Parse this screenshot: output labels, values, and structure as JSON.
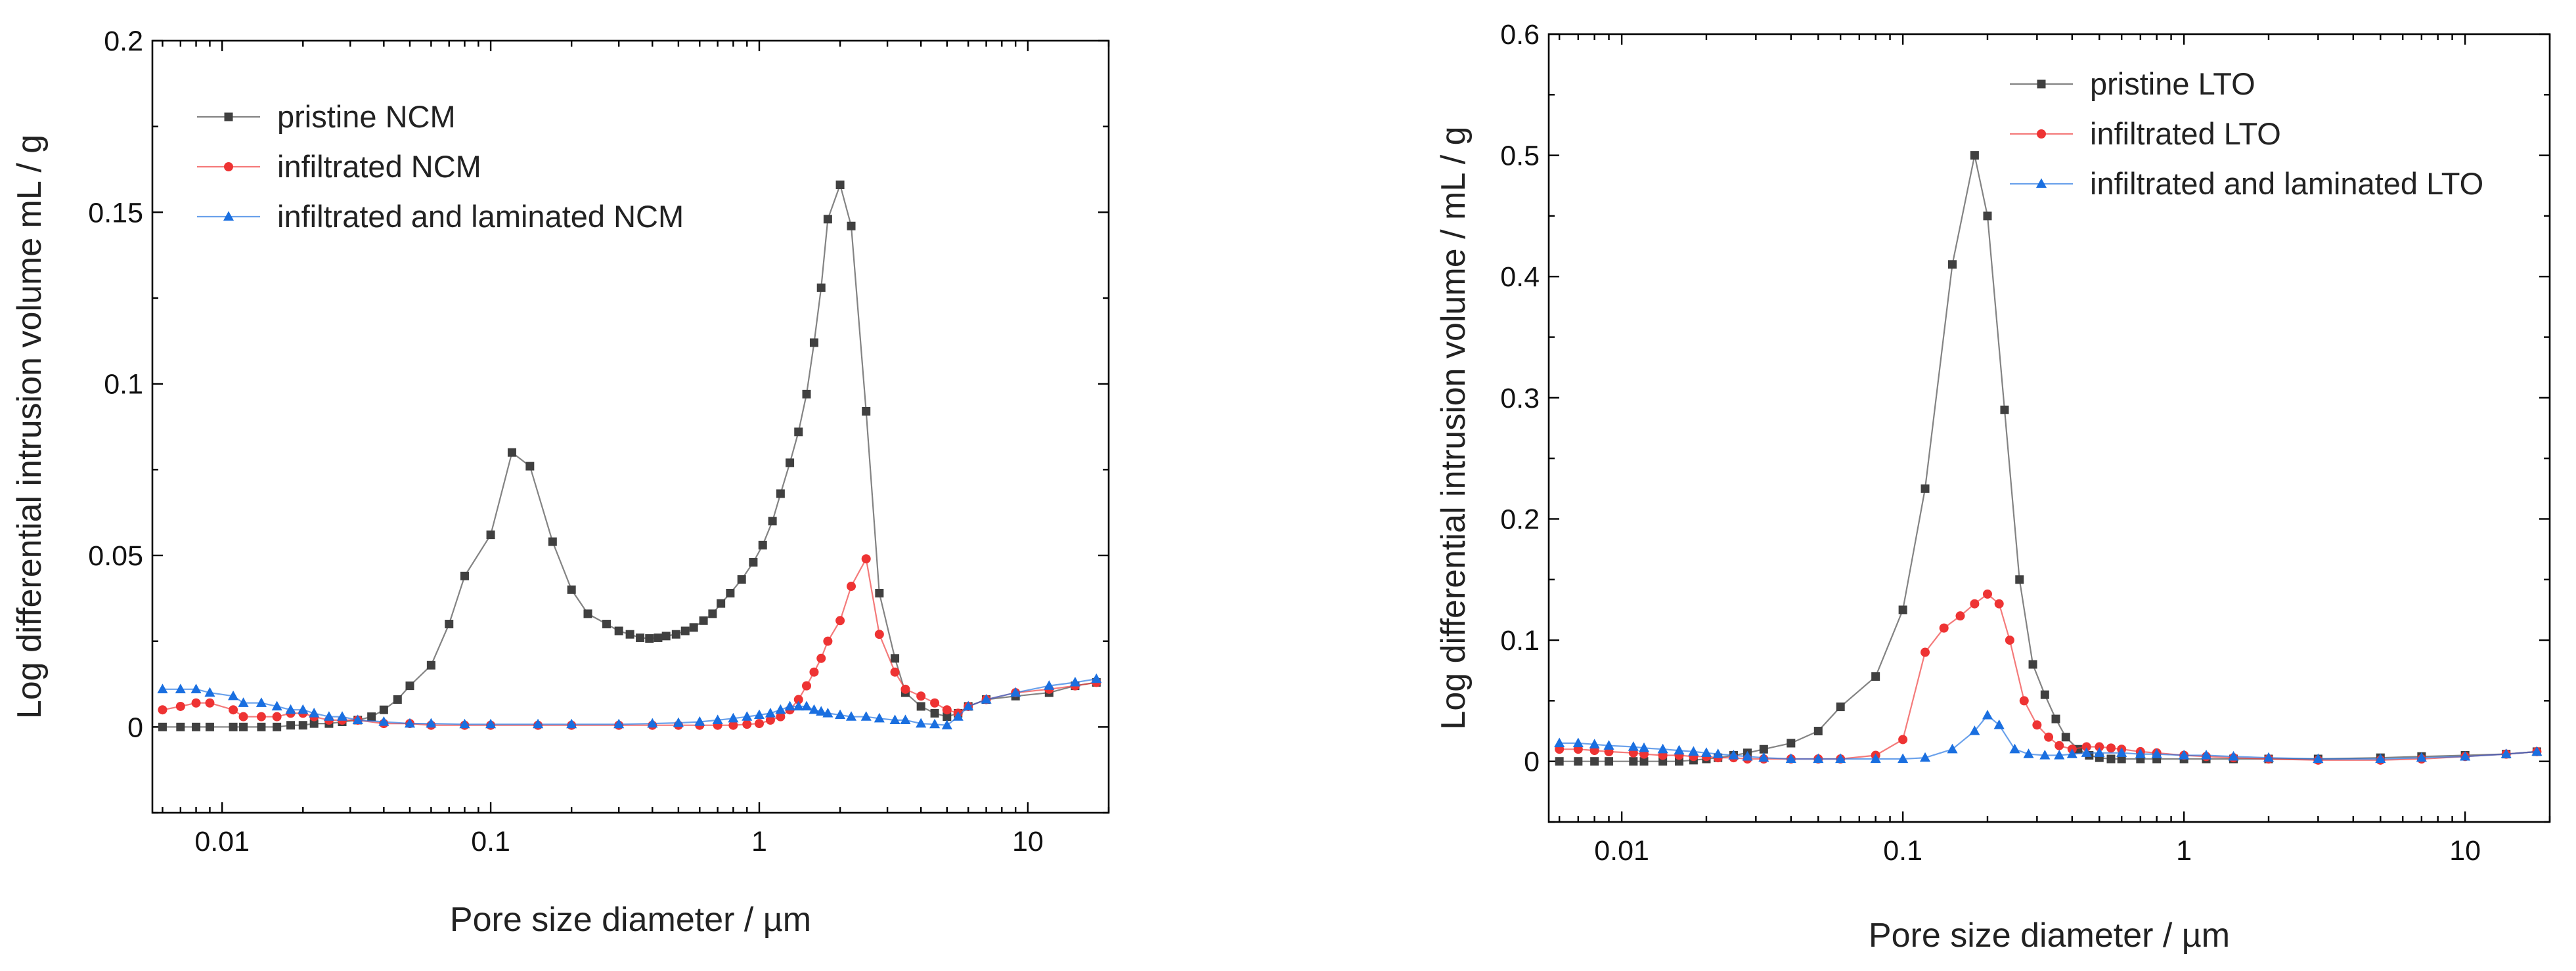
{
  "chart_data": [
    {
      "type": "scatter",
      "title": "",
      "xlabel": "Pore size diameter / µm",
      "ylabel": "Log differential intrusion volume mL / g",
      "xscale": "log",
      "xlim": [
        0.0055,
        20
      ],
      "ylim": [
        -0.025,
        0.2
      ],
      "xticks": [
        0.01,
        0.1,
        1,
        10
      ],
      "xtick_labels": [
        "0.01",
        "0.1",
        "1",
        "10"
      ],
      "yticks": [
        0,
        0.05,
        0.1,
        0.15,
        0.2
      ],
      "ytick_labels": [
        "0",
        "0.05",
        "0.1",
        "0.15",
        "0.2"
      ],
      "legend_position": "top-left",
      "series": [
        {
          "name": "pristine NCM",
          "color": "#404040",
          "marker": "square",
          "x": [
            0.006,
            0.007,
            0.008,
            0.009,
            0.011,
            0.012,
            0.014,
            0.016,
            0.018,
            0.02,
            0.022,
            0.025,
            0.028,
            0.032,
            0.036,
            0.04,
            0.045,
            0.05,
            0.06,
            0.07,
            0.08,
            0.1,
            0.12,
            0.14,
            0.17,
            0.2,
            0.23,
            0.27,
            0.3,
            0.33,
            0.36,
            0.39,
            0.42,
            0.45,
            0.49,
            0.53,
            0.57,
            0.62,
            0.67,
            0.72,
            0.78,
            0.86,
            0.95,
            1.03,
            1.12,
            1.2,
            1.3,
            1.4,
            1.5,
            1.6,
            1.7,
            1.8,
            2.0,
            2.2,
            2.5,
            2.8,
            3.2,
            3.5,
            4.0,
            4.5,
            5.0,
            5.5,
            6.0,
            7.0,
            9.0,
            12.0,
            15.0,
            18.0
          ],
          "y": [
            0,
            0,
            0,
            0,
            0,
            0,
            0,
            0,
            0.0005,
            0.0005,
            0.001,
            0.001,
            0.0015,
            0.002,
            0.003,
            0.005,
            0.008,
            0.012,
            0.018,
            0.03,
            0.044,
            0.056,
            0.08,
            0.076,
            0.054,
            0.04,
            0.033,
            0.03,
            0.028,
            0.027,
            0.026,
            0.0258,
            0.026,
            0.0265,
            0.027,
            0.028,
            0.029,
            0.031,
            0.033,
            0.036,
            0.039,
            0.043,
            0.048,
            0.053,
            0.06,
            0.068,
            0.077,
            0.086,
            0.097,
            0.112,
            0.128,
            0.148,
            0.158,
            0.146,
            0.092,
            0.039,
            0.02,
            0.01,
            0.006,
            0.004,
            0.003,
            0.004,
            0.006,
            0.008,
            0.009,
            0.01,
            0.012,
            0.013
          ]
        },
        {
          "name": "infiltrated NCM",
          "color": "#ee3333",
          "marker": "circle",
          "x": [
            0.006,
            0.007,
            0.008,
            0.009,
            0.011,
            0.012,
            0.014,
            0.016,
            0.018,
            0.02,
            0.022,
            0.025,
            0.028,
            0.032,
            0.04,
            0.05,
            0.06,
            0.08,
            0.1,
            0.15,
            0.2,
            0.3,
            0.4,
            0.5,
            0.6,
            0.7,
            0.8,
            0.9,
            1.0,
            1.1,
            1.2,
            1.3,
            1.4,
            1.5,
            1.6,
            1.7,
            1.8,
            2.0,
            2.2,
            2.5,
            2.8,
            3.2,
            3.5,
            4.0,
            4.5,
            5.0,
            5.5,
            6.0,
            7.0,
            9.0,
            12.0,
            15.0,
            18.0
          ],
          "y": [
            0.005,
            0.006,
            0.007,
            0.007,
            0.005,
            0.003,
            0.003,
            0.003,
            0.004,
            0.004,
            0.003,
            0.002,
            0.002,
            0.002,
            0.001,
            0.001,
            0.0005,
            0.0005,
            0.0005,
            0.0005,
            0.0005,
            0.0005,
            0.0005,
            0.0005,
            0.0005,
            0.0005,
            0.0005,
            0.0008,
            0.001,
            0.002,
            0.003,
            0.005,
            0.008,
            0.012,
            0.016,
            0.02,
            0.025,
            0.031,
            0.041,
            0.049,
            0.027,
            0.016,
            0.011,
            0.009,
            0.007,
            0.005,
            0.004,
            0.006,
            0.008,
            0.01,
            0.011,
            0.012,
            0.013
          ]
        },
        {
          "name": "infiltrated and laminated NCM",
          "color": "#1a6fe0",
          "marker": "triangle",
          "x": [
            0.006,
            0.007,
            0.008,
            0.009,
            0.011,
            0.012,
            0.014,
            0.016,
            0.018,
            0.02,
            0.022,
            0.025,
            0.028,
            0.032,
            0.04,
            0.05,
            0.06,
            0.08,
            0.1,
            0.15,
            0.2,
            0.3,
            0.4,
            0.5,
            0.6,
            0.7,
            0.8,
            0.9,
            1.0,
            1.1,
            1.2,
            1.3,
            1.4,
            1.5,
            1.6,
            1.7,
            1.8,
            2.0,
            2.2,
            2.5,
            2.8,
            3.2,
            3.5,
            4.0,
            4.5,
            5.0,
            5.5,
            6.0,
            7.0,
            9.0,
            12.0,
            15.0,
            18.0
          ],
          "y": [
            0.011,
            0.011,
            0.011,
            0.01,
            0.009,
            0.007,
            0.007,
            0.006,
            0.005,
            0.005,
            0.004,
            0.003,
            0.003,
            0.002,
            0.0015,
            0.001,
            0.001,
            0.0008,
            0.0008,
            0.0008,
            0.0008,
            0.0008,
            0.001,
            0.0012,
            0.0015,
            0.002,
            0.0025,
            0.003,
            0.0035,
            0.004,
            0.005,
            0.006,
            0.006,
            0.006,
            0.005,
            0.0045,
            0.004,
            0.0035,
            0.003,
            0.003,
            0.0025,
            0.002,
            0.002,
            0.001,
            0.0008,
            0.0005,
            0.003,
            0.006,
            0.008,
            0.01,
            0.012,
            0.013,
            0.014
          ]
        }
      ]
    },
    {
      "type": "scatter",
      "title": "",
      "xlabel": "Pore size diameter / µm",
      "ylabel": "Log differential intrusion volume / mL / g",
      "xscale": "log",
      "xlim": [
        0.0055,
        20
      ],
      "ylim": [
        -0.05,
        0.6
      ],
      "xticks": [
        0.01,
        0.1,
        1,
        10
      ],
      "xtick_labels": [
        "0.01",
        "0.1",
        "1",
        "10"
      ],
      "yticks": [
        0,
        0.1,
        0.2,
        0.3,
        0.4,
        0.5,
        0.6
      ],
      "ytick_labels": [
        "0",
        "0.1",
        "0.2",
        "0.3",
        "0.4",
        "0.5",
        "0.6"
      ],
      "legend_position": "top-right",
      "series": [
        {
          "name": "pristine LTO",
          "color": "#404040",
          "marker": "square",
          "x": [
            0.006,
            0.007,
            0.008,
            0.009,
            0.011,
            0.012,
            0.014,
            0.016,
            0.018,
            0.02,
            0.022,
            0.025,
            0.028,
            0.032,
            0.04,
            0.05,
            0.06,
            0.08,
            0.1,
            0.12,
            0.15,
            0.18,
            0.2,
            0.23,
            0.26,
            0.29,
            0.32,
            0.35,
            0.38,
            0.42,
            0.46,
            0.5,
            0.55,
            0.6,
            0.7,
            0.8,
            1.0,
            1.2,
            1.5,
            2.0,
            3.0,
            5.0,
            7.0,
            10.0,
            14.0,
            18.0
          ],
          "y": [
            0,
            0,
            0,
            0,
            0,
            0,
            0,
            0,
            0.001,
            0.002,
            0.003,
            0.005,
            0.007,
            0.01,
            0.015,
            0.025,
            0.045,
            0.07,
            0.125,
            0.225,
            0.41,
            0.5,
            0.45,
            0.29,
            0.15,
            0.08,
            0.055,
            0.035,
            0.02,
            0.01,
            0.005,
            0.003,
            0.002,
            0.002,
            0.002,
            0.002,
            0.002,
            0.002,
            0.002,
            0.002,
            0.002,
            0.003,
            0.004,
            0.005,
            0.006,
            0.008
          ]
        },
        {
          "name": "infiltrated LTO",
          "color": "#ee3333",
          "marker": "circle",
          "x": [
            0.006,
            0.007,
            0.008,
            0.009,
            0.011,
            0.012,
            0.014,
            0.016,
            0.018,
            0.02,
            0.022,
            0.025,
            0.028,
            0.032,
            0.04,
            0.05,
            0.06,
            0.08,
            0.1,
            0.12,
            0.14,
            0.16,
            0.18,
            0.2,
            0.22,
            0.24,
            0.27,
            0.3,
            0.33,
            0.36,
            0.4,
            0.45,
            0.5,
            0.55,
            0.6,
            0.7,
            0.8,
            1.0,
            1.2,
            1.5,
            2.0,
            3.0,
            5.0,
            7.0,
            10.0,
            14.0,
            18.0
          ],
          "y": [
            0.01,
            0.01,
            0.009,
            0.008,
            0.007,
            0.006,
            0.005,
            0.005,
            0.004,
            0.004,
            0.003,
            0.003,
            0.002,
            0.002,
            0.002,
            0.002,
            0.002,
            0.005,
            0.018,
            0.09,
            0.11,
            0.12,
            0.13,
            0.138,
            0.13,
            0.1,
            0.05,
            0.03,
            0.02,
            0.013,
            0.01,
            0.012,
            0.012,
            0.011,
            0.01,
            0.008,
            0.007,
            0.005,
            0.004,
            0.003,
            0.002,
            0.001,
            0.001,
            0.002,
            0.004,
            0.006,
            0.008
          ]
        },
        {
          "name": "infiltrated and laminated LTO",
          "color": "#1a6fe0",
          "marker": "triangle",
          "x": [
            0.006,
            0.007,
            0.008,
            0.009,
            0.011,
            0.012,
            0.014,
            0.016,
            0.018,
            0.02,
            0.022,
            0.025,
            0.028,
            0.032,
            0.04,
            0.05,
            0.06,
            0.08,
            0.1,
            0.12,
            0.15,
            0.18,
            0.2,
            0.22,
            0.25,
            0.28,
            0.32,
            0.36,
            0.4,
            0.45,
            0.5,
            0.6,
            0.7,
            0.8,
            1.0,
            1.2,
            1.5,
            2.0,
            3.0,
            5.0,
            7.0,
            10.0,
            14.0,
            18.0
          ],
          "y": [
            0.015,
            0.015,
            0.014,
            0.013,
            0.012,
            0.011,
            0.01,
            0.009,
            0.008,
            0.007,
            0.006,
            0.005,
            0.004,
            0.003,
            0.002,
            0.002,
            0.002,
            0.002,
            0.002,
            0.003,
            0.01,
            0.025,
            0.038,
            0.03,
            0.01,
            0.006,
            0.005,
            0.005,
            0.006,
            0.007,
            0.007,
            0.007,
            0.006,
            0.006,
            0.005,
            0.005,
            0.004,
            0.003,
            0.002,
            0.002,
            0.003,
            0.004,
            0.006,
            0.008
          ]
        }
      ]
    }
  ]
}
